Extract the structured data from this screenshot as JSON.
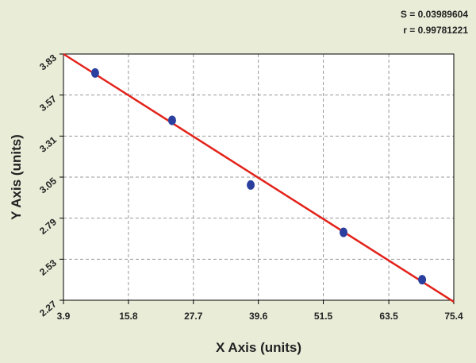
{
  "chart_data": {
    "type": "scatter",
    "annotations": [
      "S = 0.03989604",
      "r = 0.99781221"
    ],
    "x_label": "X Axis (units)",
    "y_label": "Y Axis (units)",
    "x": [
      9.7,
      23.8,
      38.2,
      55.2,
      69.6
    ],
    "values": [
      3.71,
      3.41,
      3.0,
      2.7,
      2.4
    ],
    "color": "#2b3f9e",
    "fit": {
      "x": [
        3.9,
        75.4
      ],
      "values": [
        3.83,
        2.26
      ],
      "color": "#e3231b"
    },
    "xlim": [
      3.9,
      75.4
    ],
    "xticks": [
      3.9,
      15.8,
      27.7,
      39.6,
      51.5,
      63.5,
      75.4
    ],
    "ylim": [
      2.27,
      3.83
    ],
    "yticks": [
      2.27,
      2.53,
      2.79,
      3.05,
      3.31,
      3.57,
      3.83
    ],
    "grid": true
  }
}
